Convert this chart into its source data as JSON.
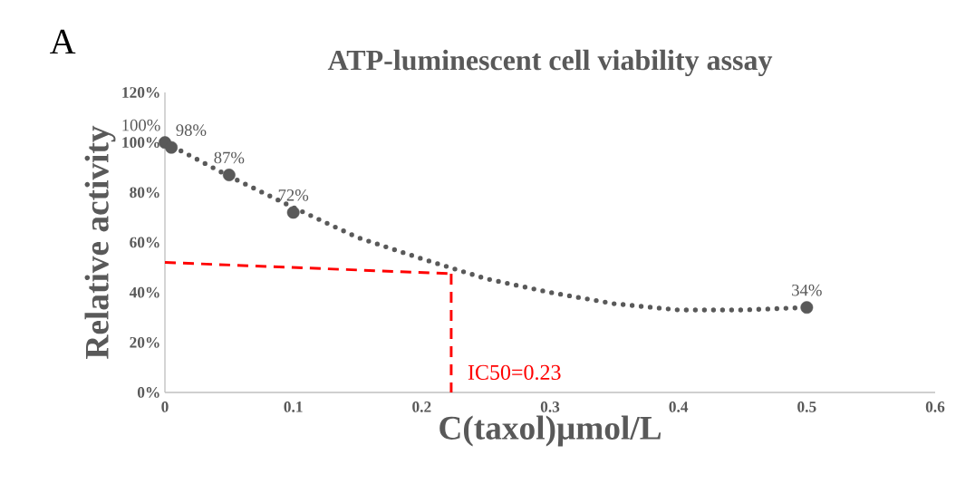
{
  "chart_data": {
    "type": "scatter",
    "title": "ATP-luminescent cell viability assay",
    "xlabel": "C(taxol)μmol/L",
    "ylabel": "Relative activity",
    "annotations": [
      "A",
      {
        "text": "IC50=0.23",
        "x": 0.223,
        "y": 8
      }
    ],
    "xlim": [
      0,
      0.6
    ],
    "xticks": [
      0,
      0.1,
      0.2,
      0.3,
      0.4,
      0.5,
      0.6
    ],
    "ylim": [
      0,
      120
    ],
    "yticks": [
      {
        "value": 0,
        "label": "0%"
      },
      {
        "value": 20,
        "label": "20%"
      },
      {
        "value": 40,
        "label": "40%"
      },
      {
        "value": 60,
        "label": "60%"
      },
      {
        "value": 80,
        "label": "80%"
      },
      {
        "value": 100,
        "label": "100%"
      },
      {
        "value": 120,
        "label": "120%"
      }
    ],
    "grid": false,
    "series": [
      {
        "color": "#595959",
        "marker": "circle",
        "x": [
          0,
          0.005,
          0.05,
          0.1,
          0.5
        ],
        "values": [
          100,
          98,
          87,
          72,
          34
        ],
        "value_labels": [
          "100%",
          "98%",
          "87%",
          "72%",
          "34%"
        ]
      },
      {
        "type": "line",
        "color": "#595959",
        "line_style": "dotted",
        "marker": "none",
        "x": [
          0,
          0.05,
          0.1,
          0.15,
          0.2,
          0.225,
          0.25,
          0.3,
          0.35,
          0.4,
          0.45,
          0.5
        ],
        "values": [
          100,
          86.5,
          74,
          62,
          53.5,
          49.5,
          45.5,
          40,
          35.5,
          33,
          33,
          34
        ]
      },
      {
        "type": "line",
        "color": "#ff0000",
        "line_style": "dashed",
        "marker": "none",
        "x": [
          0,
          0.223
        ],
        "values": [
          52,
          47.5
        ]
      },
      {
        "type": "line",
        "color": "#ff0000",
        "line_style": "dashed",
        "marker": "none",
        "x": [
          0.223,
          0.223
        ],
        "values": [
          47.5,
          0
        ]
      }
    ]
  }
}
